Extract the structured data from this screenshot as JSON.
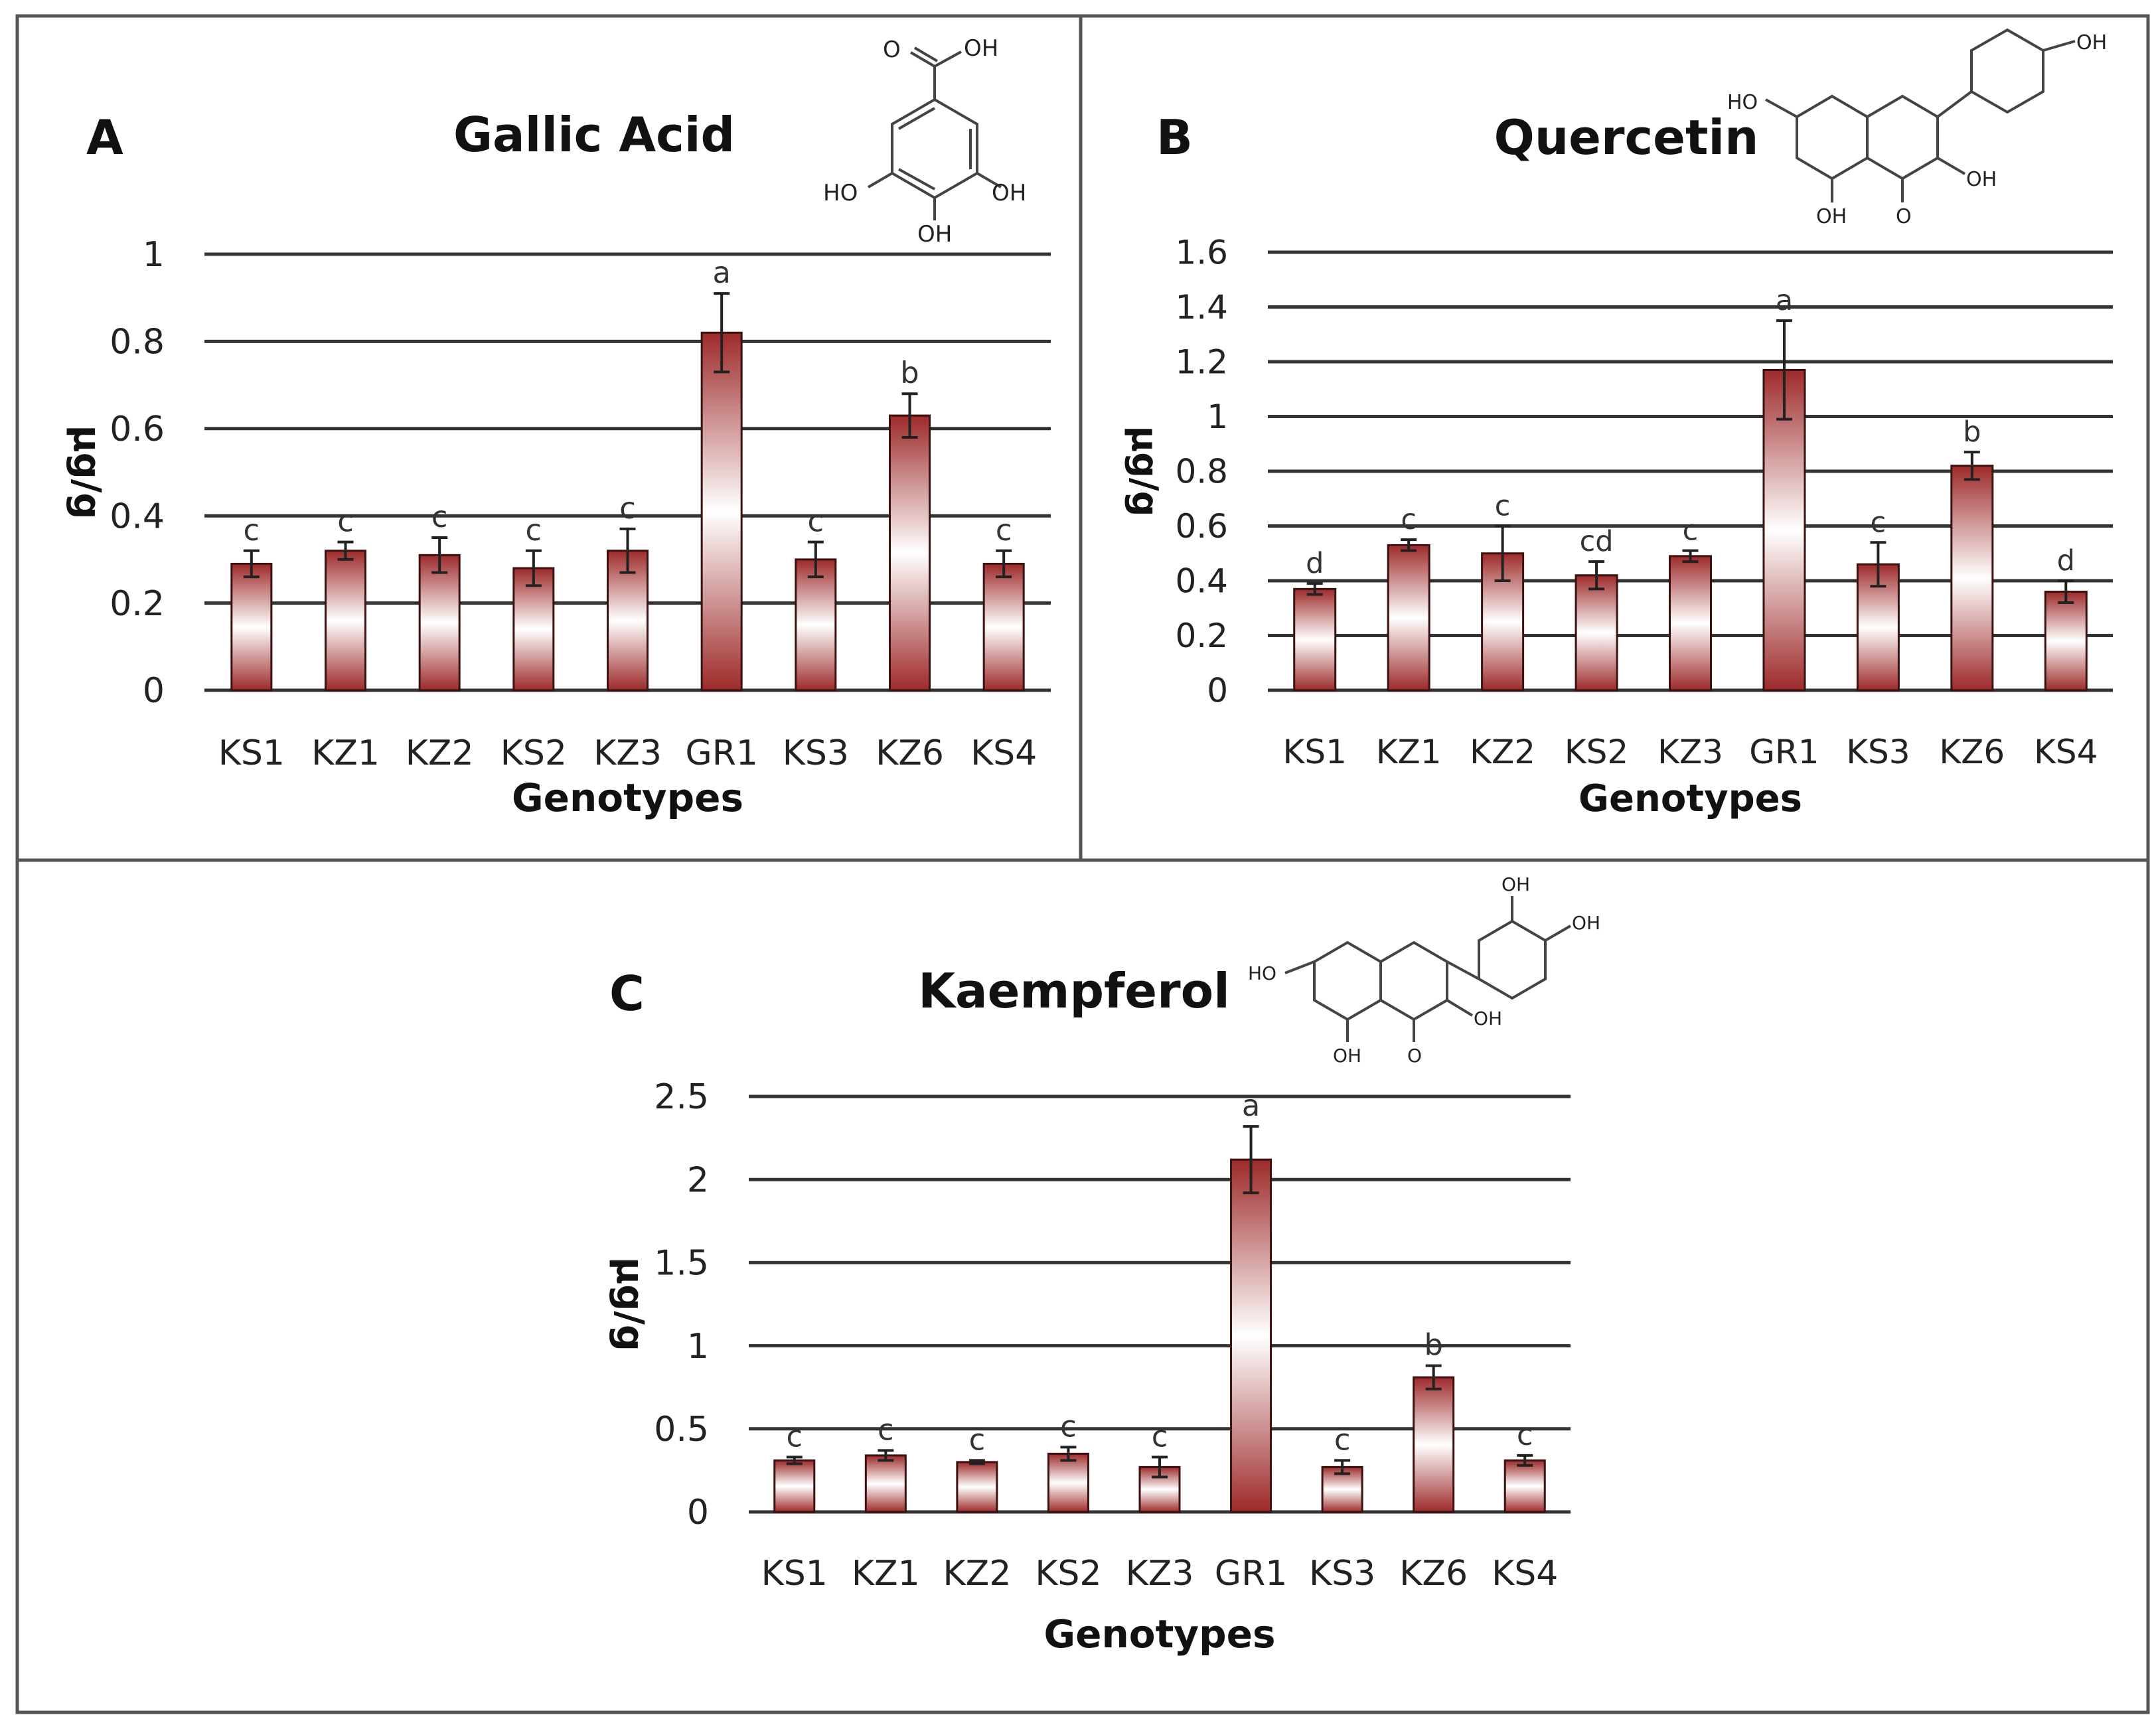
{
  "colors": {
    "bar_dark": "#9e2a2a",
    "bar_light": "#ffffff",
    "grid": "#333333",
    "frame": "#555555"
  },
  "chart_data": [
    {
      "panel": "A",
      "title": "Gallic Acid",
      "type": "bar",
      "xlabel": "Genotypes",
      "ylabel": "μg/g",
      "categories": [
        "KS1",
        "KZ1",
        "KZ2",
        "KS2",
        "KZ3",
        "GR1",
        "KS3",
        "KZ6",
        "KS4"
      ],
      "values": [
        0.29,
        0.32,
        0.31,
        0.28,
        0.32,
        0.82,
        0.3,
        0.63,
        0.29
      ],
      "errors": [
        0.03,
        0.02,
        0.04,
        0.04,
        0.05,
        0.09,
        0.04,
        0.05,
        0.03
      ],
      "significance": [
        "c",
        "c",
        "c",
        "c",
        "c",
        "a",
        "c",
        "b",
        "c"
      ],
      "ylim": [
        0,
        1
      ],
      "yticks": [
        "0",
        "0.2",
        "0.4",
        "0.6",
        "0.8",
        "1"
      ],
      "grid": true,
      "structure_labels": [
        "OH",
        "O",
        "HO",
        "OH",
        "OH"
      ]
    },
    {
      "panel": "B",
      "title": "Quercetin",
      "type": "bar",
      "xlabel": "Genotypes",
      "ylabel": "μg/g",
      "categories": [
        "KS1",
        "KZ1",
        "KZ2",
        "KS2",
        "KZ3",
        "GR1",
        "KS3",
        "KZ6",
        "KS4"
      ],
      "values": [
        0.37,
        0.53,
        0.5,
        0.42,
        0.49,
        1.17,
        0.46,
        0.82,
        0.36
      ],
      "errors": [
        0.02,
        0.02,
        0.1,
        0.05,
        0.02,
        0.18,
        0.08,
        0.05,
        0.04
      ],
      "significance": [
        "d",
        "c",
        "c",
        "cd",
        "c",
        "a",
        "c",
        "b",
        "d"
      ],
      "ylim": [
        0,
        1.6
      ],
      "yticks": [
        "0",
        "0.2",
        "0.4",
        "0.6",
        "0.8",
        "1",
        "1.2",
        "1.4",
        "1.6"
      ],
      "grid": true,
      "structure_labels": [
        "HO",
        "OH",
        "OH",
        "OH",
        "O"
      ]
    },
    {
      "panel": "C",
      "title": "Kaempferol",
      "type": "bar",
      "xlabel": "Genotypes",
      "ylabel": "μg/g",
      "categories": [
        "KS1",
        "KZ1",
        "KZ2",
        "KS2",
        "KZ3",
        "GR1",
        "KS3",
        "KZ6",
        "KS4"
      ],
      "values": [
        0.31,
        0.34,
        0.3,
        0.35,
        0.27,
        2.12,
        0.27,
        0.81,
        0.31
      ],
      "errors": [
        0.02,
        0.03,
        0.01,
        0.04,
        0.06,
        0.2,
        0.04,
        0.07,
        0.03
      ],
      "significance": [
        "c",
        "c",
        "c",
        "c",
        "c",
        "a",
        "c",
        "b",
        "c"
      ],
      "ylim": [
        0,
        2.5
      ],
      "yticks": [
        "0",
        "0.5",
        "1",
        "1.5",
        "2",
        "2.5"
      ],
      "grid": true,
      "structure_labels": [
        "OH",
        "OH",
        "HO",
        "OH",
        "OH",
        "O"
      ]
    }
  ]
}
